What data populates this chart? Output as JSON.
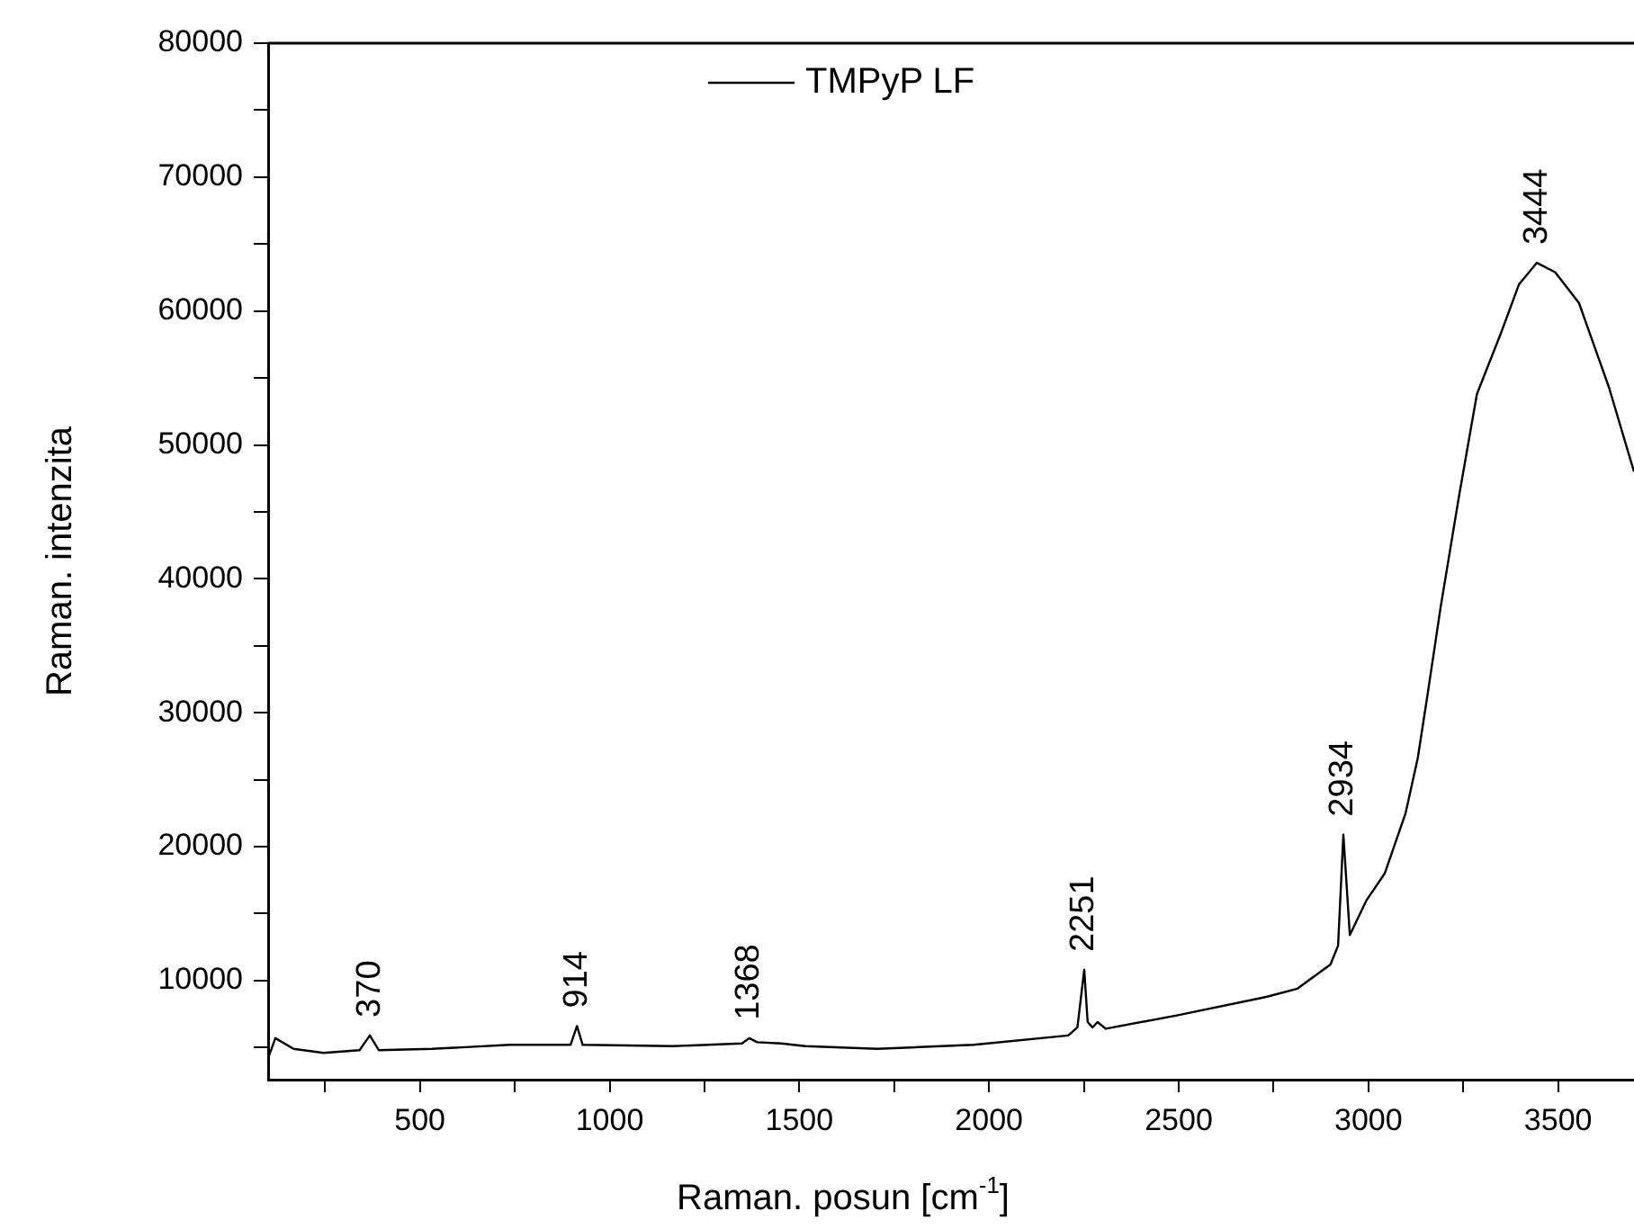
{
  "chart_data": {
    "type": "line",
    "xlabel": "Raman. posun [cm$^{-1}$]",
    "ylabel": "Raman. intenzita",
    "xlim": [
      100,
      3700
    ],
    "ylim": [
      2600,
      80000
    ],
    "xticks": [
      {
        "value": 250,
        "label": null
      },
      500,
      {
        "value": 750,
        "label": null
      },
      1000,
      {
        "value": 1250,
        "label": null
      },
      1500,
      {
        "value": 1750,
        "label": null
      },
      2000,
      {
        "value": 2250,
        "label": null
      },
      2500,
      {
        "value": 2750,
        "label": null
      },
      3000,
      {
        "value": 3250,
        "label": null
      },
      3500
    ],
    "yticks": [
      {
        "value": 5000,
        "label": null
      },
      10000,
      {
        "value": 15000,
        "label": null
      },
      20000,
      {
        "value": 25000,
        "label": null
      },
      30000,
      {
        "value": 35000,
        "label": null
      },
      40000,
      {
        "value": 45000,
        "label": null
      },
      50000,
      {
        "value": 55000,
        "label": null
      },
      60000,
      {
        "value": 65000,
        "label": null
      },
      70000,
      {
        "value": 75000,
        "label": null
      },
      80000
    ],
    "grid": false,
    "legend": "top",
    "marker": "none",
    "line_style": "solid",
    "series": [
      {
        "name": "TMPyP LF",
        "color": "#000000",
        "x": [
          100,
          119,
          167,
          246,
          341,
          368,
          392,
          532,
          738,
          897,
          914,
          929,
          1167,
          1349,
          1368,
          1389,
          1452,
          1516,
          1706,
          1960,
          2209,
          2233,
          2251,
          2260,
          2273,
          2286,
          2308,
          2495,
          2717,
          2733,
          2813,
          2900,
          2920,
          2934,
          2951,
          2995,
          3043,
          3098,
          3130,
          3154,
          3191,
          3239,
          3286,
          3350,
          3397,
          3444,
          3492,
          3555,
          3634,
          3700
        ],
        "values": [
          4200,
          5700,
          4900,
          4600,
          4800,
          5900,
          4800,
          4900,
          5200,
          5200,
          6600,
          5200,
          5100,
          5300,
          5700,
          5400,
          5300,
          5100,
          4900,
          5200,
          5900,
          6500,
          10800,
          6900,
          6500,
          6900,
          6400,
          7400,
          8700,
          8800,
          9400,
          11200,
          12600,
          20900,
          13400,
          16000,
          18000,
          22500,
          26600,
          31000,
          38000,
          46200,
          53800,
          58400,
          62000,
          63600,
          62900,
          60600,
          54300,
          48000
        ]
      }
    ],
    "annotations": [
      {
        "text": "370",
        "x": 370,
        "y": 5900
      },
      {
        "text": "914",
        "x": 914,
        "y": 6600
      },
      {
        "text": "1368",
        "x": 1368,
        "y": 5700
      },
      {
        "text": "2251",
        "x": 2251,
        "y": 10800
      },
      {
        "text": "2934",
        "x": 2934,
        "y": 20900
      },
      {
        "text": "3444",
        "x": 3444,
        "y": 63600
      }
    ]
  }
}
